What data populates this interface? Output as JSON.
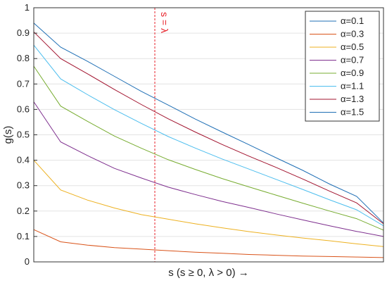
{
  "chart_data": {
    "type": "line",
    "ylabel": "g(s)",
    "xlabel": "s (s ≥ 0, λ > 0) →",
    "ylim": [
      0,
      1
    ],
    "y_ticks": [
      "0",
      "0.1",
      "0.2",
      "0.3",
      "0.4",
      "0.5",
      "0.6",
      "0.7",
      "0.8",
      "0.9",
      "1"
    ],
    "grid": "horizontal",
    "legend_position": "top-right",
    "x": [
      0,
      1,
      2,
      3,
      4,
      5,
      6,
      7,
      8,
      9,
      10,
      11,
      12,
      13
    ],
    "annotation": {
      "text": "s = λ",
      "x": 4.5,
      "color": "#e8232b"
    },
    "series": [
      {
        "name": "α=0.1",
        "color": "#1f6fb5",
        "values": [
          0,
          0,
          0,
          0,
          0,
          0,
          0,
          0,
          0,
          0,
          0,
          0,
          0,
          0
        ]
      },
      {
        "name": "α=0.3",
        "color": "#d95319",
        "values": [
          0.127,
          0.079,
          0.066,
          0.056,
          0.05,
          0.044,
          0.038,
          0.034,
          0.029,
          0.026,
          0.023,
          0.021,
          0.019,
          0.017
        ]
      },
      {
        "name": "α=0.5",
        "color": "#edb120",
        "values": [
          0.4,
          0.283,
          0.243,
          0.212,
          0.186,
          0.168,
          0.15,
          0.134,
          0.119,
          0.106,
          0.094,
          0.083,
          0.071,
          0.06
        ]
      },
      {
        "name": "α=0.7",
        "color": "#7e2f8e",
        "values": [
          0.63,
          0.472,
          0.418,
          0.368,
          0.33,
          0.294,
          0.265,
          0.238,
          0.214,
          0.189,
          0.165,
          0.142,
          0.12,
          0.1
        ]
      },
      {
        "name": "α=0.9",
        "color": "#77ac30",
        "values": [
          0.77,
          0.613,
          0.553,
          0.495,
          0.447,
          0.402,
          0.364,
          0.328,
          0.295,
          0.263,
          0.231,
          0.2,
          0.17,
          0.125
        ]
      },
      {
        "name": "α=1.1",
        "color": "#4dbeee",
        "values": [
          0.853,
          0.72,
          0.658,
          0.599,
          0.545,
          0.493,
          0.448,
          0.405,
          0.365,
          0.325,
          0.285,
          0.244,
          0.205,
          0.142
        ]
      },
      {
        "name": "α=1.3",
        "color": "#a2142f",
        "values": [
          0.905,
          0.8,
          0.74,
          0.678,
          0.619,
          0.563,
          0.511,
          0.462,
          0.416,
          0.372,
          0.326,
          0.278,
          0.232,
          0.15
        ]
      },
      {
        "name": "α=1.5",
        "color": "#1f6fb5",
        "values": [
          0.94,
          0.845,
          0.789,
          0.73,
          0.671,
          0.617,
          0.562,
          0.511,
          0.461,
          0.41,
          0.36,
          0.306,
          0.258,
          0.153
        ]
      }
    ]
  }
}
